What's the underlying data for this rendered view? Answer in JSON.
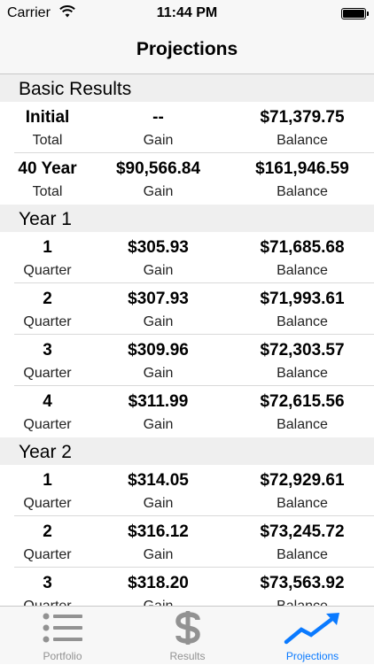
{
  "status_bar": {
    "carrier": "Carrier",
    "time": "11:44 PM"
  },
  "nav": {
    "title": "Projections"
  },
  "sections": [
    {
      "title": "Basic Results",
      "rows": [
        {
          "c1": "Initial",
          "c1_label": "Total",
          "c2": "--",
          "c2_label": "Gain",
          "c3": "$71,379.75",
          "c3_label": "Balance"
        },
        {
          "c1": "40 Year",
          "c1_label": "Total",
          "c2": "$90,566.84",
          "c2_label": "Gain",
          "c3": "$161,946.59",
          "c3_label": "Balance"
        }
      ]
    },
    {
      "title": "Year 1",
      "rows": [
        {
          "c1": "1",
          "c1_label": "Quarter",
          "c2": "$305.93",
          "c2_label": "Gain",
          "c3": "$71,685.68",
          "c3_label": "Balance"
        },
        {
          "c1": "2",
          "c1_label": "Quarter",
          "c2": "$307.93",
          "c2_label": "Gain",
          "c3": "$71,993.61",
          "c3_label": "Balance"
        },
        {
          "c1": "3",
          "c1_label": "Quarter",
          "c2": "$309.96",
          "c2_label": "Gain",
          "c3": "$72,303.57",
          "c3_label": "Balance"
        },
        {
          "c1": "4",
          "c1_label": "Quarter",
          "c2": "$311.99",
          "c2_label": "Gain",
          "c3": "$72,615.56",
          "c3_label": "Balance"
        }
      ]
    },
    {
      "title": "Year 2",
      "rows": [
        {
          "c1": "1",
          "c1_label": "Quarter",
          "c2": "$314.05",
          "c2_label": "Gain",
          "c3": "$72,929.61",
          "c3_label": "Balance"
        },
        {
          "c1": "2",
          "c1_label": "Quarter",
          "c2": "$316.12",
          "c2_label": "Gain",
          "c3": "$73,245.72",
          "c3_label": "Balance"
        },
        {
          "c1": "3",
          "c1_label": "Quarter",
          "c2": "$318.20",
          "c2_label": "Gain",
          "c3": "$73,563.92",
          "c3_label": "Balance"
        }
      ]
    }
  ],
  "tabs": [
    {
      "label": "Portfolio",
      "icon": "list-icon",
      "active": false
    },
    {
      "label": "Results",
      "icon": "dollar-icon",
      "active": false
    },
    {
      "label": "Projections",
      "icon": "trend-chart-icon",
      "active": true
    }
  ],
  "colors": {
    "accent": "#0a7aff",
    "inactive_tab": "#929292",
    "section_bg": "#efefef",
    "bar_bg": "#f7f7f7"
  }
}
